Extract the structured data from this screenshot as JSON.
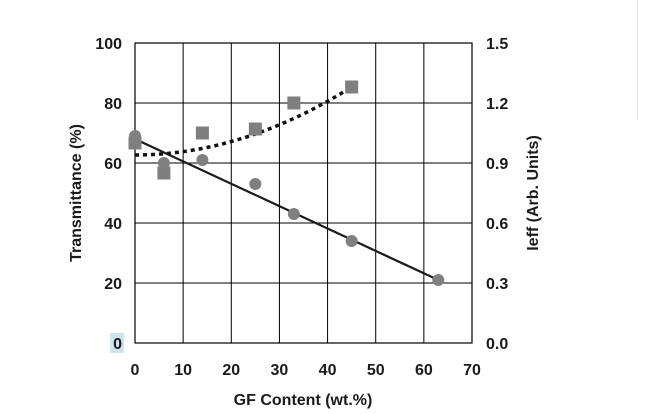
{
  "chart_data": {
    "type": "scatter",
    "xlabel": "GF Content (wt.%)",
    "ylabel_left": "Transmittance (%)",
    "ylabel_right": "Ieff (Arb. Units)",
    "x_ticks": [
      "0",
      "10",
      "20",
      "30",
      "40",
      "50",
      "60",
      "70"
    ],
    "y_left_ticks": [
      "0",
      "20",
      "40",
      "60",
      "80",
      "100"
    ],
    "y_right_ticks": [
      "0.0",
      "0.3",
      "0.6",
      "0.9",
      "1.2",
      "1.5"
    ],
    "xlim": [
      0,
      70
    ],
    "ylim_left": [
      0,
      100
    ],
    "ylim_right": [
      0,
      1.5
    ],
    "grid": true,
    "series": [
      {
        "marker": "circle",
        "axis": "left",
        "color": "#808080",
        "trendline": "solid",
        "trendline_from": [
          0,
          68
        ],
        "trendline_to": [
          63,
          21
        ],
        "x": [
          0,
          6,
          14,
          25,
          33,
          45,
          63
        ],
        "y": [
          69,
          60,
          61,
          53,
          43,
          34,
          21
        ]
      },
      {
        "marker": "square",
        "axis": "right",
        "color": "#7f7f7f",
        "trendline": "dotted",
        "trendline_from": [
          0,
          0.94
        ],
        "trendline_to": [
          45,
          1.28
        ],
        "x": [
          0,
          6,
          14,
          25,
          33,
          45
        ],
        "y": [
          1.0,
          0.85,
          1.05,
          1.07,
          1.2,
          1.28
        ]
      }
    ]
  }
}
